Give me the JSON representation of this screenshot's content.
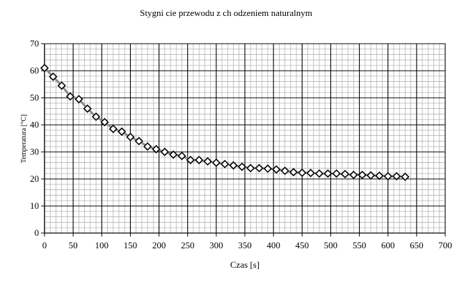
{
  "chart_data": {
    "type": "scatter",
    "title": "Stygni  cie przewodu z ch odzeniem naturalnym",
    "xlabel": "Czas [s]",
    "ylabel": "Temperatura [°C]",
    "xlim": [
      0,
      700
    ],
    "ylim": [
      0,
      70
    ],
    "xticks": [
      0,
      50,
      100,
      150,
      200,
      250,
      300,
      350,
      400,
      450,
      500,
      550,
      600,
      650,
      700
    ],
    "yticks": [
      0,
      10,
      20,
      30,
      40,
      50,
      60,
      70
    ],
    "grid": true,
    "legend": "none",
    "marker": "diamond",
    "series": [
      {
        "x": [
          0,
          15,
          30,
          45,
          60,
          75,
          90,
          105,
          120,
          135,
          150,
          165,
          180,
          195,
          210,
          225,
          240,
          255,
          270,
          285,
          300,
          315,
          330,
          345,
          360,
          375,
          390,
          405,
          420,
          435,
          450,
          465,
          480,
          495,
          510,
          525,
          540,
          555,
          570,
          585,
          600,
          615,
          630
        ],
        "y": [
          61,
          57.8,
          54.5,
          50.5,
          49.5,
          46,
          43,
          41,
          38.5,
          37.5,
          35.5,
          34,
          32,
          31,
          30,
          29,
          28.5,
          27,
          27,
          26.5,
          26,
          25.5,
          25,
          24.5,
          24,
          24,
          23.8,
          23.5,
          23,
          22.5,
          22.3,
          22.2,
          22,
          22,
          22,
          21.8,
          21.5,
          21.5,
          21.3,
          21.2,
          21,
          21,
          20.8
        ]
      }
    ],
    "trendline": true
  }
}
